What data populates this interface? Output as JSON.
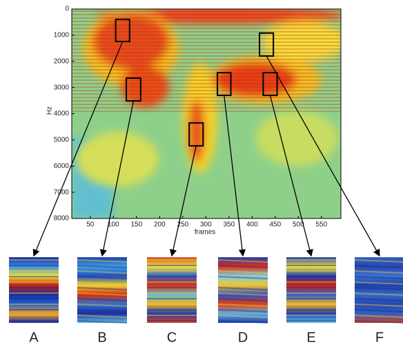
{
  "chart_data": {
    "type": "spectrogram",
    "xlabel": "frames",
    "ylabel": "Hz",
    "xlim": [
      10,
      592
    ],
    "ylim": [
      0,
      8000
    ],
    "xticks": [
      50,
      100,
      150,
      200,
      250,
      300,
      350,
      400,
      450,
      500,
      550
    ],
    "yticks": [
      0,
      1000,
      2000,
      3000,
      4000,
      5000,
      6000,
      7000,
      8000
    ],
    "patches": [
      {
        "label": "A",
        "frames": [
          105,
          135
        ],
        "hz": [
          400,
          1240
        ]
      },
      {
        "label": "B",
        "frames": [
          128,
          159
        ],
        "hz": [
          2640,
          3510
        ]
      },
      {
        "label": "C",
        "frames": [
          264,
          294
        ],
        "hz": [
          4350,
          5225
        ]
      },
      {
        "label": "D",
        "frames": [
          325,
          354
        ],
        "hz": [
          2430,
          3300
        ]
      },
      {
        "label": "E",
        "frames": [
          424,
          454
        ],
        "hz": [
          2430,
          3300
        ]
      },
      {
        "label": "F",
        "frames": [
          416,
          446
        ],
        "hz": [
          920,
          1795
        ]
      }
    ]
  }
}
